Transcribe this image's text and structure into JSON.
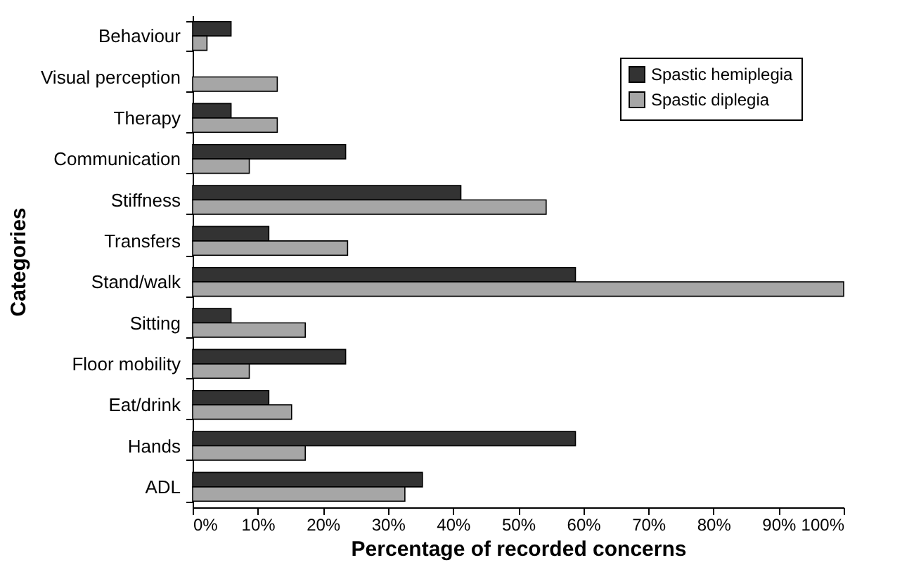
{
  "chart_data": {
    "type": "bar",
    "orientation": "horizontal",
    "xlabel": "Percentage of recorded concerns",
    "ylabel": "Categories",
    "categories": [
      "Behaviour",
      "Visual perception",
      "Therapy",
      "Communication",
      "Stiffness",
      "Transfers",
      "Stand/walk",
      "Sitting",
      "Floor mobility",
      "Eat/drink",
      "Hands",
      "ADL"
    ],
    "series": [
      {
        "name": "Spastic hemiplegia",
        "color": "#333333",
        "values": [
          5.9,
          null,
          5.9,
          23.5,
          41.2,
          11.7,
          58.8,
          5.9,
          23.5,
          11.7,
          58.8,
          35.3
        ]
      },
      {
        "name": "Spastic diplegia",
        "color": "#a6a6a6",
        "values": [
          2.2,
          13.0,
          13.0,
          8.7,
          54.3,
          23.8,
          100,
          17.3,
          8.7,
          15.2,
          17.3,
          32.6
        ]
      }
    ],
    "xlim": [
      0,
      100
    ],
    "xticks": [
      {
        "value": 0,
        "label": "0%"
      },
      {
        "value": 10,
        "label": "10%"
      },
      {
        "value": 20,
        "label": "20%"
      },
      {
        "value": 30,
        "label": "30%"
      },
      {
        "value": 40,
        "label": "40%"
      },
      {
        "value": 50,
        "label": "50%"
      },
      {
        "value": 60,
        "label": "60%"
      },
      {
        "value": 70,
        "label": "70%"
      },
      {
        "value": 80,
        "label": "80%"
      },
      {
        "value": 90,
        "label": "90%"
      },
      {
        "value": 100,
        "label": "100%"
      }
    ],
    "grid": false,
    "legend": "top right"
  }
}
